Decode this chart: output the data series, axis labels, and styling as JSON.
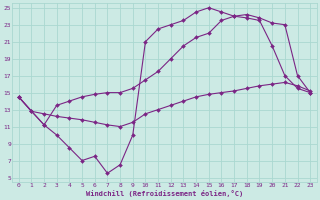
{
  "xlabel": "Windchill (Refroidissement éolien,°C)",
  "bg_color": "#cceae4",
  "line_color": "#7b2585",
  "grid_color": "#aad8d0",
  "xlim": [
    -0.5,
    23.5
  ],
  "ylim": [
    4.5,
    25.5
  ],
  "xticks": [
    0,
    1,
    2,
    3,
    4,
    5,
    6,
    7,
    8,
    9,
    10,
    11,
    12,
    13,
    14,
    15,
    16,
    17,
    18,
    19,
    20,
    21,
    22,
    23
  ],
  "yticks": [
    5,
    7,
    9,
    11,
    13,
    15,
    17,
    19,
    21,
    23,
    25
  ],
  "line1_x": [
    0,
    1,
    2,
    3,
    4,
    5,
    6,
    7,
    8,
    9,
    10,
    11,
    12,
    13,
    14,
    15,
    16,
    17,
    18,
    19,
    20,
    21,
    22,
    23
  ],
  "line1_y": [
    14.5,
    12.8,
    11.2,
    10.0,
    8.5,
    7.0,
    7.5,
    5.5,
    6.5,
    10.0,
    21.0,
    22.5,
    23.0,
    23.5,
    24.5,
    25.0,
    24.5,
    24.0,
    23.8,
    23.5,
    20.5,
    17.0,
    15.5,
    15.0
  ],
  "line2_x": [
    0,
    1,
    2,
    3,
    4,
    5,
    6,
    7,
    8,
    9,
    10,
    11,
    12,
    13,
    14,
    15,
    16,
    17,
    18,
    19,
    20,
    21,
    22,
    23
  ],
  "line2_y": [
    14.5,
    12.8,
    12.5,
    12.2,
    12.0,
    11.8,
    11.5,
    11.2,
    11.0,
    11.5,
    12.5,
    13.0,
    13.5,
    14.0,
    14.5,
    14.8,
    15.0,
    15.2,
    15.5,
    15.8,
    16.0,
    16.2,
    15.8,
    15.2
  ],
  "line3_x": [
    0,
    2,
    3,
    4,
    5,
    6,
    7,
    8,
    9,
    10,
    11,
    12,
    13,
    14,
    15,
    16,
    17,
    18,
    19,
    20,
    21,
    22,
    23
  ],
  "line3_y": [
    14.5,
    11.2,
    13.5,
    14.0,
    14.5,
    14.8,
    15.0,
    15.0,
    15.5,
    16.5,
    17.5,
    19.0,
    20.5,
    21.5,
    22.0,
    23.5,
    24.0,
    24.2,
    23.8,
    23.2,
    23.0,
    17.0,
    15.0
  ]
}
